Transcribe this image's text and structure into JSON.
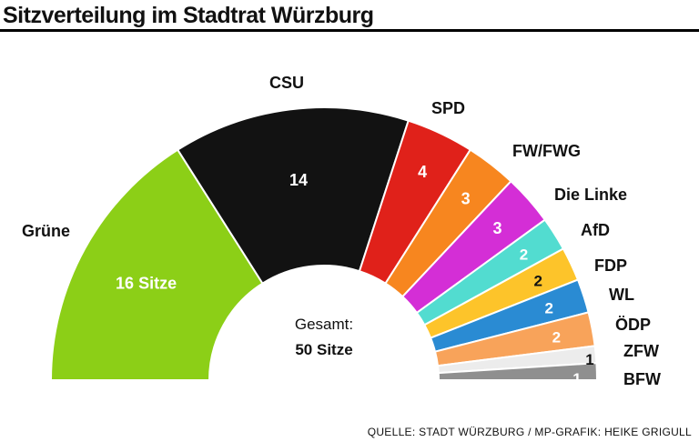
{
  "title": "Sitzverteilung im Stadtrat Würzburg",
  "source": "QUELLE: STADT WÜRZBURG / MP-GRAFIK: HEIKE GRIGULL",
  "center_label": {
    "line1": "Gesamt:",
    "line2": "50 Sitze"
  },
  "chart_data": {
    "type": "pie",
    "subtype": "semicircle-parliament",
    "total": 50,
    "slices": [
      {
        "party": "Grüne",
        "seats": 16,
        "value_label": "16 Sitze",
        "color": "#8ccf17",
        "text_color": "#ffffff"
      },
      {
        "party": "CSU",
        "seats": 14,
        "value_label": "14",
        "color": "#121212",
        "text_color": "#ffffff"
      },
      {
        "party": "SPD",
        "seats": 4,
        "value_label": "4",
        "color": "#e0211a",
        "text_color": "#ffffff"
      },
      {
        "party": "FW/FWG",
        "seats": 3,
        "value_label": "3",
        "color": "#f7861f",
        "text_color": "#ffffff"
      },
      {
        "party": "Die Linke",
        "seats": 3,
        "value_label": "3",
        "color": "#d42ed6",
        "text_color": "#ffffff"
      },
      {
        "party": "AfD",
        "seats": 2,
        "value_label": "2",
        "color": "#52dcd0",
        "text_color": "#ffffff"
      },
      {
        "party": "FDP",
        "seats": 2,
        "value_label": "2",
        "color": "#fdc42a",
        "text_color": "#111111"
      },
      {
        "party": "WL",
        "seats": 2,
        "value_label": "2",
        "color": "#2a8bd3",
        "text_color": "#ffffff"
      },
      {
        "party": "ÖDP",
        "seats": 2,
        "value_label": "2",
        "color": "#f8a35a",
        "text_color": "#ffffff"
      },
      {
        "party": "ZFW",
        "seats": 1,
        "value_label": "1",
        "color": "#ececec",
        "text_color": "#111111"
      },
      {
        "party": "BFW",
        "seats": 1,
        "value_label": "1",
        "color": "#8f8f8f",
        "text_color": "#ffffff"
      }
    ]
  }
}
